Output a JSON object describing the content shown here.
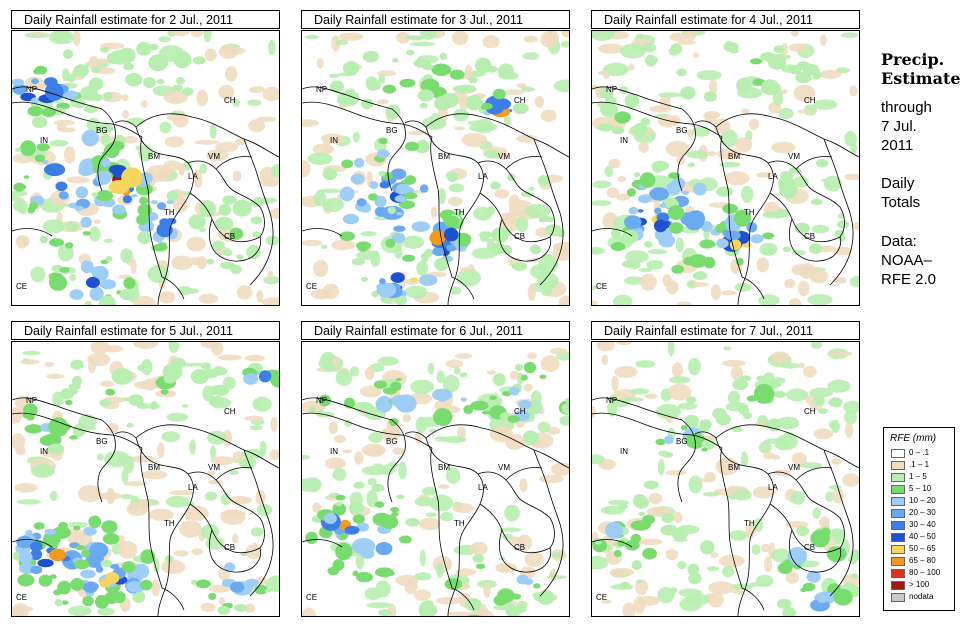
{
  "panels": [
    {
      "title": "Daily Rainfall estimate for  2 Jul., 2011",
      "pattern": 1
    },
    {
      "title": "Daily Rainfall estimate for  3 Jul., 2011",
      "pattern": 2
    },
    {
      "title": "Daily Rainfall estimate for  4 Jul., 2011",
      "pattern": 3
    },
    {
      "title": "Daily Rainfall estimate for  5 Jul., 2011",
      "pattern": 4
    },
    {
      "title": "Daily Rainfall estimate for  6 Jul., 2011",
      "pattern": 5
    },
    {
      "title": "Daily Rainfall estimate for  7 Jul., 2011",
      "pattern": 6
    }
  ],
  "country_labels": {
    "np": "NP",
    "ch": "CH",
    "in": "IN",
    "bg": "BG",
    "bm": "BM",
    "vm": "VM",
    "la": "LA",
    "th": "TH",
    "cb": "CB",
    "ce": "CE"
  },
  "sidebar": {
    "title_line1": "Precip.",
    "title_line2": "Estimate",
    "through": "through",
    "date_line1": "7 Jul.",
    "date_line2": "2011",
    "daily": "Daily",
    "totals": "Totals",
    "data_label": "Data:",
    "source_line1": "NOAA–",
    "source_line2": "RFE 2.0"
  },
  "legend": {
    "title": "RFE (mm)",
    "items": [
      {
        "label": "0 – .1",
        "color": "#ffffff"
      },
      {
        "label": ".1 – 1",
        "color": "#efdcc0"
      },
      {
        "label": "1 – 5",
        "color": "#b8eeb0"
      },
      {
        "label": "5 – 10",
        "color": "#78dc6e"
      },
      {
        "label": "10 – 20",
        "color": "#9ecdf5"
      },
      {
        "label": "20 – 30",
        "color": "#6aaaf0"
      },
      {
        "label": "30 – 40",
        "color": "#3a7ee6"
      },
      {
        "label": "40 – 50",
        "color": "#1f50cf"
      },
      {
        "label": "50 – 65",
        "color": "#f5d760"
      },
      {
        "label": "65 – 80",
        "color": "#f29a1e"
      },
      {
        "label": "80 – 100",
        "color": "#e0301e"
      },
      {
        "label": "> 100",
        "color": "#a01812"
      },
      {
        "label": "nodata",
        "color": "#c8c8c8"
      }
    ]
  }
}
